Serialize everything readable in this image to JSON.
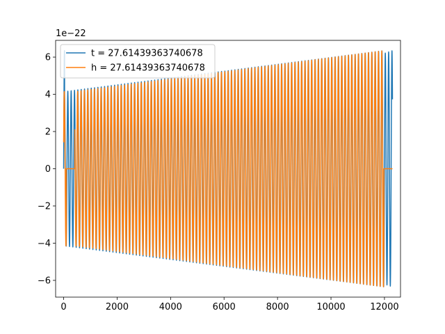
{
  "chart_data": {
    "type": "line",
    "title": "",
    "xlabel": "",
    "ylabel": "",
    "y_offset_label": "1e−22",
    "xlim": [
      -300,
      12600
    ],
    "ylim": [
      -6.9,
      6.9
    ],
    "x_ticks": [
      0,
      2000,
      4000,
      6000,
      8000,
      10000,
      12000
    ],
    "x_tick_labels": [
      "0",
      "2000",
      "4000",
      "6000",
      "8000",
      "10000",
      "12000"
    ],
    "y_ticks": [
      -6,
      -4,
      -2,
      0,
      2,
      4,
      6
    ],
    "y_tick_labels": [
      "−6",
      "−4",
      "−2",
      "0",
      "2",
      "4",
      "6"
    ],
    "grid": false,
    "legend_position": "top-left",
    "series": [
      {
        "name": "t = 27.61439363740678",
        "color": "#1f77b4",
        "cycles": 96,
        "segments": [
          {
            "x_start": 0,
            "x_end": 35,
            "amp_start": 6.35,
            "amp_end": 6.35
          },
          {
            "x_start": 35,
            "x_end": 12000,
            "amp_start": 4.15,
            "amp_end": 6.35
          },
          {
            "x_start": 12000,
            "x_end": 12300,
            "amp_start": 6.2,
            "amp_end": 6.35
          }
        ]
      },
      {
        "name": "h = 27.61439363740678",
        "color": "#ff7f0e",
        "cycles": 96,
        "segments": [
          {
            "x_start": 0,
            "x_end": 100,
            "amp_start": 4.15,
            "amp_end": 4.15
          },
          {
            "x_start": 100,
            "x_end": 420,
            "amp_start": 0,
            "amp_end": 0
          },
          {
            "x_start": 420,
            "x_end": 11980,
            "amp_start": 4.15,
            "amp_end": 6.35
          },
          {
            "x_start": 11980,
            "x_end": 12300,
            "amp_start": 0,
            "amp_end": 0
          }
        ]
      }
    ]
  }
}
